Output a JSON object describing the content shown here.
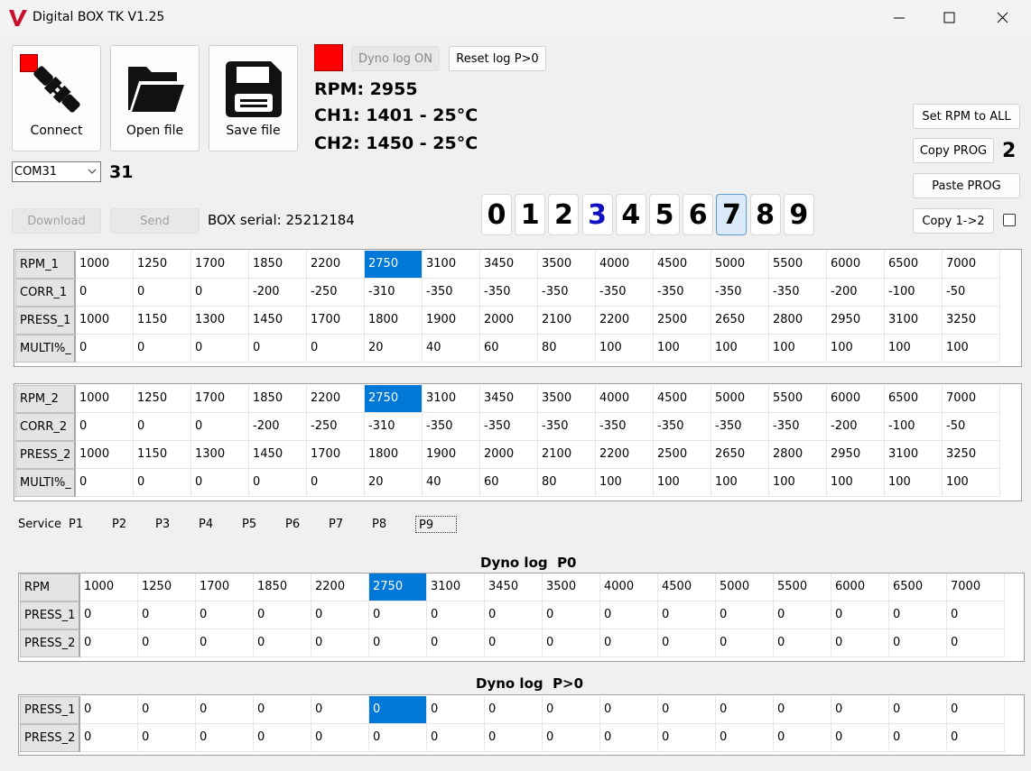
{
  "window": {
    "title": "Digital BOX TK V1.25"
  },
  "toolbar": {
    "connect": "Connect",
    "open": "Open file",
    "save": "Save file"
  },
  "port": {
    "name": "COM31",
    "number": "31"
  },
  "actions": {
    "download": "Download",
    "send": "Send",
    "serial": "BOX serial: 25212184"
  },
  "dyno_buttons": {
    "log_on": "Dyno log ON",
    "reset": "Reset log P>0"
  },
  "readouts": [
    "RPM: 2955",
    "CH1: 1401 - 25°C",
    "CH2: 1450 - 25°C"
  ],
  "digits": [
    "0",
    "1",
    "2",
    "3",
    "4",
    "5",
    "6",
    "7",
    "8",
    "9"
  ],
  "right_panel": {
    "set_rpm": "Set RPM to ALL",
    "copy_prog": "Copy PROG",
    "copy_prog_count": "2",
    "paste_prog": "Paste PROG",
    "copy_1_2": "Copy 1->2"
  },
  "table_1": {
    "rows": [
      {
        "label": "RPM_1",
        "cells": [
          1000,
          1250,
          1700,
          1850,
          2200,
          2750,
          3100,
          3450,
          3500,
          4000,
          4500,
          5000,
          5500,
          6000,
          6500,
          7000
        ]
      },
      {
        "label": "CORR_1",
        "cells": [
          0,
          0,
          0,
          -200,
          -250,
          -310,
          -350,
          -350,
          -350,
          -350,
          -350,
          -350,
          -350,
          -200,
          -100,
          -50
        ]
      },
      {
        "label": "PRESS_1",
        "cells": [
          1000,
          1150,
          1300,
          1450,
          1700,
          1800,
          1900,
          2000,
          2100,
          2200,
          2500,
          2650,
          2800,
          2950,
          3100,
          3250
        ]
      },
      {
        "label": "MULTI%_",
        "cells": [
          0,
          0,
          0,
          0,
          0,
          20,
          40,
          60,
          80,
          100,
          100,
          100,
          100,
          100,
          100,
          100
        ]
      }
    ]
  },
  "table_2": {
    "rows": [
      {
        "label": "RPM_2",
        "cells": [
          1000,
          1250,
          1700,
          1850,
          2200,
          2750,
          3100,
          3450,
          3500,
          4000,
          4500,
          5000,
          5500,
          6000,
          6500,
          7000
        ]
      },
      {
        "label": "CORR_2",
        "cells": [
          0,
          0,
          0,
          -200,
          -250,
          -310,
          -350,
          -350,
          -350,
          -350,
          -350,
          -350,
          -350,
          -200,
          -100,
          -50
        ]
      },
      {
        "label": "PRESS_2",
        "cells": [
          1000,
          1150,
          1300,
          1450,
          1700,
          1800,
          1900,
          2000,
          2100,
          2200,
          2500,
          2650,
          2800,
          2950,
          3100,
          3250
        ]
      },
      {
        "label": "MULTI%_",
        "cells": [
          0,
          0,
          0,
          0,
          0,
          20,
          40,
          60,
          80,
          100,
          100,
          100,
          100,
          100,
          100,
          100
        ]
      }
    ]
  },
  "tabs": [
    "Service",
    "P1",
    "P2",
    "P3",
    "P4",
    "P5",
    "P6",
    "P7",
    "P8",
    "P9"
  ],
  "dyno_p0": {
    "title": "Dyno log  P0",
    "rows": [
      {
        "label": "RPM",
        "cells": [
          1000,
          1250,
          1700,
          1850,
          2200,
          2750,
          3100,
          3450,
          3500,
          4000,
          4500,
          5000,
          5500,
          6000,
          6500,
          7000
        ]
      },
      {
        "label": "PRESS_1",
        "cells": [
          0,
          0,
          0,
          0,
          0,
          0,
          0,
          0,
          0,
          0,
          0,
          0,
          0,
          0,
          0,
          0
        ]
      },
      {
        "label": "PRESS_2",
        "cells": [
          0,
          0,
          0,
          0,
          0,
          0,
          0,
          0,
          0,
          0,
          0,
          0,
          0,
          0,
          0,
          0
        ]
      }
    ]
  },
  "dyno_p": {
    "title": "Dyno log  P>0",
    "rows": [
      {
        "label": "PRESS_1",
        "cells": [
          0,
          0,
          0,
          0,
          0,
          0,
          0,
          0,
          0,
          0,
          0,
          0,
          0,
          0,
          0,
          0
        ]
      },
      {
        "label": "PRESS_2",
        "cells": [
          0,
          0,
          0,
          0,
          0,
          0,
          0,
          0,
          0,
          0,
          0,
          0,
          0,
          0,
          0,
          0
        ]
      }
    ]
  }
}
